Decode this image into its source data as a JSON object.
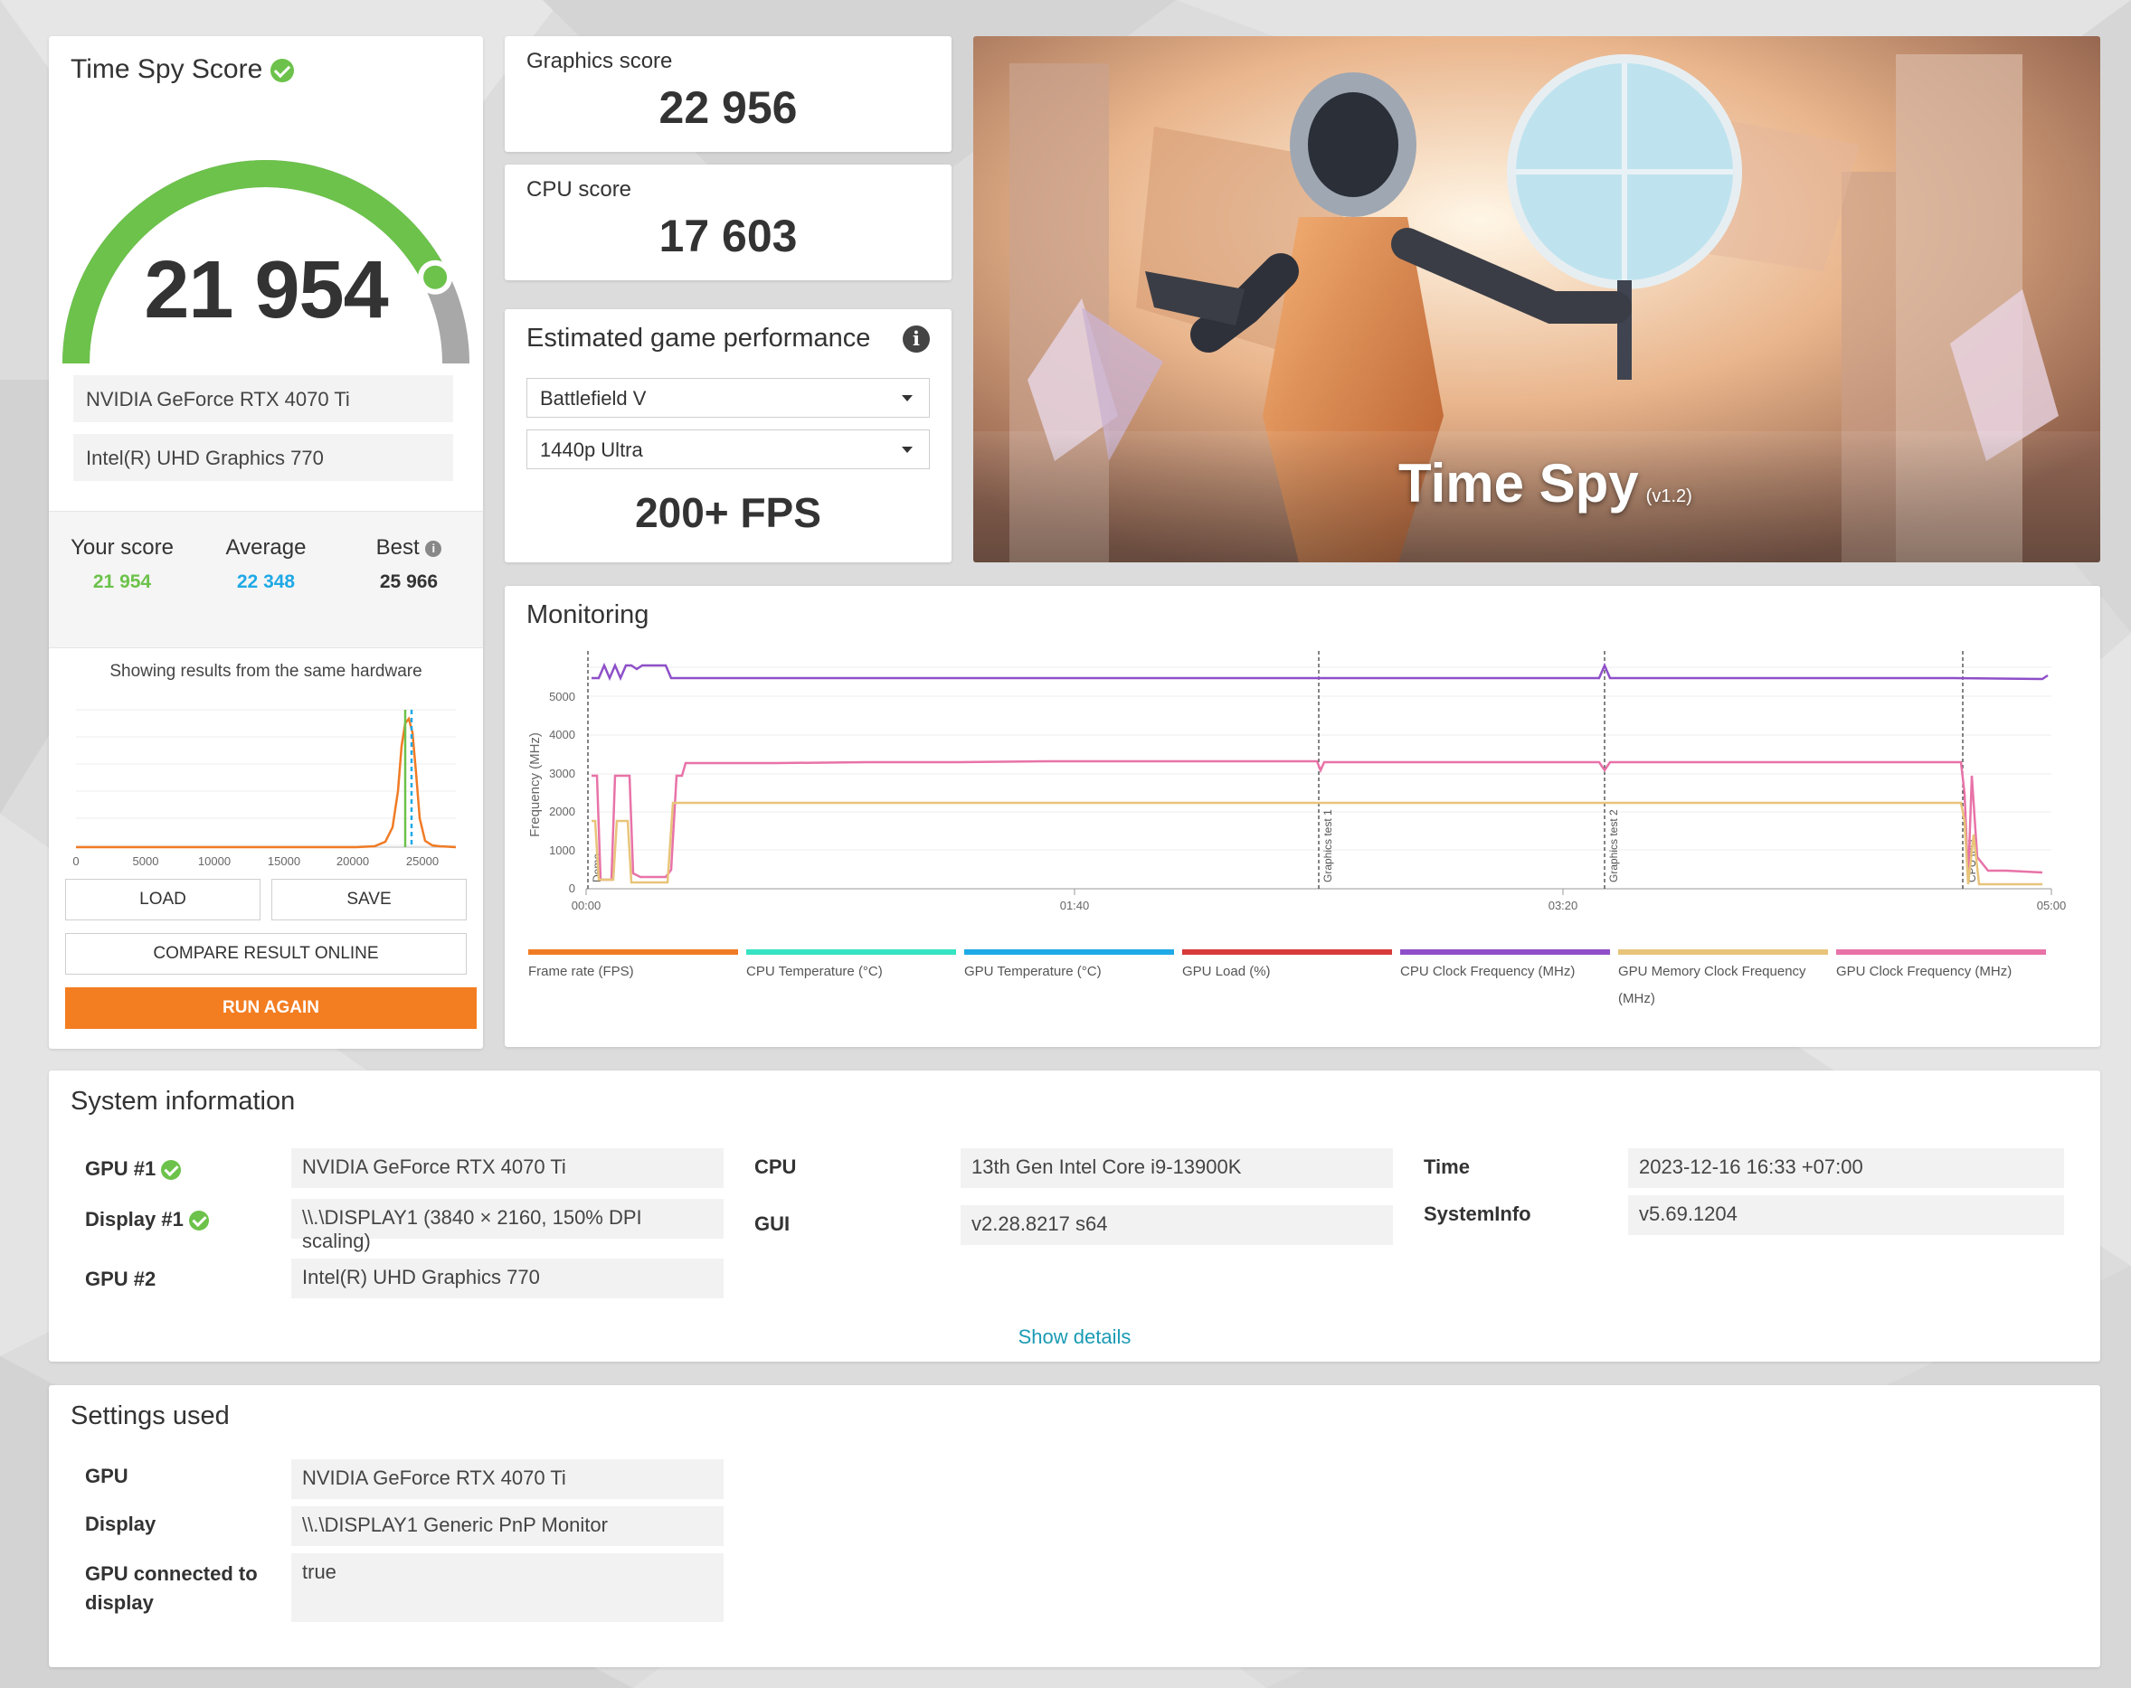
{
  "score_panel": {
    "title": "Time Spy Score",
    "score": "21 954",
    "gauge_fraction": 0.85,
    "hardware": [
      "NVIDIA GeForce RTX 4070 Ti",
      "Intel(R) UHD Graphics 770"
    ],
    "your_score_label": "Your score",
    "your_score": "21 954",
    "average_label": "Average",
    "average": "22 348",
    "best_label": "Best",
    "best": "25 966",
    "hist_caption": "Showing results from the same hardware",
    "hist_ticks": [
      "0",
      "5000",
      "10000",
      "15000",
      "20000",
      "25000"
    ],
    "load_label": "LOAD",
    "save_label": "SAVE",
    "compare_label": "COMPARE RESULT ONLINE",
    "run_label": "RUN AGAIN"
  },
  "graphics_score": {
    "label": "Graphics score",
    "value": "22 956"
  },
  "cpu_score": {
    "label": "CPU score",
    "value": "17 603"
  },
  "game_perf": {
    "title": "Estimated game performance",
    "game": "Battlefield V",
    "preset": "1440p Ultra",
    "fps": "200+ FPS"
  },
  "banner": {
    "title": "Time Spy",
    "version": "(v1.2)"
  },
  "monitoring": {
    "title": "Monitoring",
    "y_axis_label": "Frequency (MHz)",
    "y_ticks": [
      "0",
      "1000",
      "2000",
      "3000",
      "4000",
      "5000"
    ],
    "x_ticks": [
      "00:00",
      "01:40",
      "03:20",
      "05:00"
    ],
    "markers": [
      "Demo",
      "Graphics test 1",
      "Graphics test 2",
      "CPU test"
    ],
    "legend": [
      {
        "name": "Frame rate (FPS)",
        "color": "#f07b25"
      },
      {
        "name": "CPU Temperature (°C)",
        "color": "#37e3c3"
      },
      {
        "name": "GPU Temperature (°C)",
        "color": "#1fa9e6"
      },
      {
        "name": "GPU Load (%)",
        "color": "#d73a3a"
      },
      {
        "name": "CPU Clock Frequency (MHz)",
        "color": "#8e4fc8"
      },
      {
        "name": "GPU Memory Clock Frequency (MHz)",
        "color": "#e8c47a"
      },
      {
        "name": "GPU Clock Frequency (MHz)",
        "color": "#e873a8"
      }
    ]
  },
  "system_info": {
    "title": "System information",
    "gpu1_label": "GPU #1",
    "gpu1": "NVIDIA GeForce RTX 4070 Ti",
    "display1_label": "Display #1",
    "display1": "\\\\.\\DISPLAY1 (3840 × 2160, 150% DPI scaling)",
    "gpu2_label": "GPU #2",
    "gpu2": "Intel(R) UHD Graphics 770",
    "cpu_label": "CPU",
    "cpu": "13th Gen Intel Core i9-13900K",
    "gui_label": "GUI",
    "gui": "v2.28.8217 s64",
    "time_label": "Time",
    "time": "2023-12-16 16:33 +07:00",
    "sysinfo_label": "SystemInfo",
    "sysinfo": "v5.69.1204",
    "show_details": "Show details"
  },
  "settings": {
    "title": "Settings used",
    "gpu_label": "GPU",
    "gpu": "NVIDIA GeForce RTX 4070 Ti",
    "display_label": "Display",
    "display": "\\\\.\\DISPLAY1 Generic PnP Monitor",
    "connected_label_1": "GPU connected to",
    "connected_label_2": "display",
    "connected": "true"
  }
}
